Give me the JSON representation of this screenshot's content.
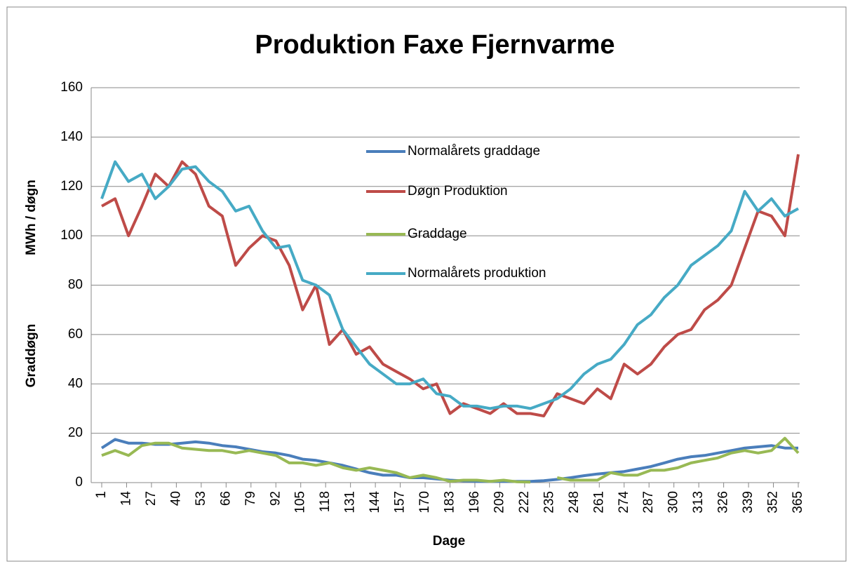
{
  "chart_data": {
    "type": "line",
    "title": "Produktion Faxe Fjernvarme",
    "y_label": "MWh / døgn",
    "y_label_2": "Graddøgn",
    "x_label": "Dage",
    "x": [
      1,
      8,
      15,
      22,
      29,
      36,
      43,
      50,
      57,
      64,
      71,
      78,
      85,
      92,
      99,
      106,
      113,
      120,
      127,
      134,
      141,
      148,
      155,
      162,
      169,
      176,
      183,
      190,
      197,
      204,
      211,
      218,
      225,
      232,
      239,
      246,
      253,
      260,
      267,
      274,
      281,
      288,
      295,
      302,
      309,
      316,
      323,
      330,
      337,
      344,
      351,
      358,
      365
    ],
    "xlim": [
      1,
      365
    ],
    "xticks": [
      1,
      14,
      27,
      40,
      53,
      66,
      79,
      92,
      105,
      118,
      131,
      144,
      157,
      170,
      183,
      196,
      209,
      222,
      235,
      248,
      261,
      274,
      287,
      300,
      313,
      326,
      339,
      352,
      365
    ],
    "ylim": [
      0,
      160
    ],
    "yticks": [
      0,
      20,
      40,
      60,
      80,
      100,
      120,
      140,
      160
    ],
    "grid": true,
    "legend": "inside",
    "series": [
      {
        "name": "Normalårets graddage",
        "color": "#4a7ebb",
        "values": [
          14,
          17.5,
          16,
          16,
          15.5,
          15.5,
          16,
          16.5,
          16,
          15,
          14.5,
          13.5,
          12.5,
          12,
          11,
          9.5,
          9,
          8,
          7,
          5.5,
          4,
          3,
          3,
          2,
          2,
          1.5,
          1,
          0.7,
          0.5,
          0.5,
          0.5,
          0.5,
          0.5,
          0.8,
          1.3,
          2,
          2.8,
          3.5,
          4,
          4.5,
          5.5,
          6.5,
          8,
          9.5,
          10.5,
          11,
          12,
          13,
          14,
          14.5,
          15,
          14,
          14
        ]
      },
      {
        "name": "Døgn Produktion",
        "color": "#be4b48",
        "values": [
          112,
          115,
          100,
          112,
          125,
          120,
          130,
          125,
          112,
          108,
          88,
          95,
          100,
          98,
          88,
          70,
          80,
          56,
          62,
          52,
          55,
          48,
          45,
          42,
          38,
          40,
          28,
          32,
          30,
          28,
          32,
          28,
          28,
          27,
          36,
          34,
          32,
          38,
          34,
          48,
          44,
          48,
          55,
          60,
          62,
          70,
          74,
          80,
          95,
          110,
          108,
          100,
          133
        ]
      },
      {
        "name": "Graddage",
        "color": "#98b954",
        "values": [
          11,
          13,
          11,
          15,
          16,
          16,
          14,
          13.5,
          13,
          13,
          12,
          13,
          12,
          11,
          8,
          8,
          7,
          8,
          6,
          5,
          6,
          5,
          4,
          2,
          3,
          2,
          0.5,
          1,
          1,
          0.5,
          1,
          0.3,
          0.2,
          null,
          2,
          1,
          1,
          1,
          4,
          3,
          3,
          5,
          5,
          6,
          8,
          9,
          10,
          12,
          13,
          12,
          13,
          18,
          12
        ]
      },
      {
        "name": "Normalårets produktion",
        "color": "#46aac5",
        "values": [
          115,
          130,
          122,
          125,
          115,
          120,
          127,
          128,
          122,
          118,
          110,
          112,
          102,
          95,
          96,
          82,
          80,
          76,
          62,
          55,
          48,
          44,
          40,
          40,
          42,
          36,
          35,
          31,
          31,
          30,
          31,
          31,
          30,
          32,
          34,
          38,
          44,
          48,
          50,
          56,
          64,
          68,
          75,
          80,
          88,
          92,
          96,
          102,
          118,
          110,
          115,
          108,
          111
        ]
      }
    ]
  }
}
